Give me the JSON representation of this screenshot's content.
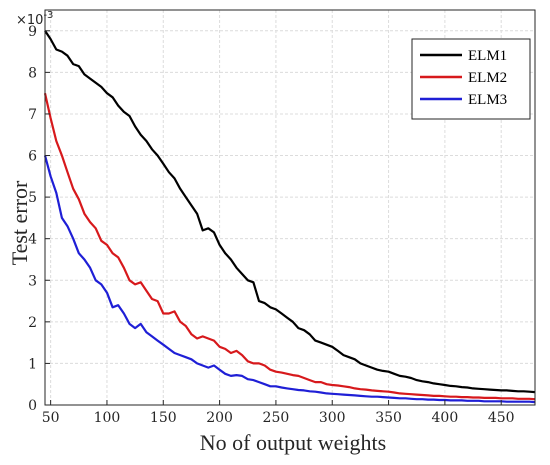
{
  "chart_data": {
    "type": "line",
    "xlabel": "No of output weights",
    "ylabel": "Test error",
    "y_multiplier_label": "×10",
    "y_multiplier_exponent": "-3",
    "xlim": [
      45,
      480
    ],
    "ylim": [
      0,
      9.5
    ],
    "xticks": [
      50,
      100,
      150,
      200,
      250,
      300,
      350,
      400,
      450
    ],
    "yticks": [
      0,
      1,
      2,
      3,
      4,
      5,
      6,
      7,
      8,
      9
    ],
    "grid": true,
    "legend_position": "top-right",
    "series": [
      {
        "name": "ELM1",
        "color": "#000000",
        "x": [
          45,
          50,
          55,
          60,
          65,
          70,
          75,
          80,
          85,
          90,
          95,
          100,
          105,
          110,
          115,
          120,
          125,
          130,
          135,
          140,
          145,
          150,
          155,
          160,
          165,
          170,
          175,
          180,
          185,
          190,
          195,
          200,
          205,
          210,
          215,
          220,
          225,
          230,
          235,
          240,
          245,
          250,
          255,
          260,
          265,
          270,
          275,
          280,
          285,
          290,
          295,
          300,
          305,
          310,
          315,
          320,
          325,
          330,
          335,
          340,
          345,
          350,
          355,
          360,
          365,
          370,
          375,
          380,
          385,
          390,
          395,
          400,
          405,
          410,
          415,
          420,
          425,
          430,
          435,
          440,
          445,
          450,
          455,
          460,
          465,
          470,
          475,
          480
        ],
        "values": [
          9.0,
          8.8,
          8.55,
          8.5,
          8.4,
          8.2,
          8.15,
          7.95,
          7.85,
          7.75,
          7.65,
          7.5,
          7.4,
          7.2,
          7.05,
          6.95,
          6.7,
          6.5,
          6.35,
          6.15,
          6.0,
          5.8,
          5.6,
          5.45,
          5.2,
          5.0,
          4.8,
          4.6,
          4.2,
          4.25,
          4.15,
          3.85,
          3.65,
          3.5,
          3.3,
          3.15,
          3.0,
          2.95,
          2.5,
          2.45,
          2.35,
          2.3,
          2.2,
          2.1,
          2.0,
          1.85,
          1.8,
          1.7,
          1.55,
          1.5,
          1.45,
          1.4,
          1.3,
          1.2,
          1.15,
          1.1,
          1.0,
          0.95,
          0.9,
          0.85,
          0.82,
          0.8,
          0.75,
          0.7,
          0.68,
          0.65,
          0.6,
          0.57,
          0.55,
          0.52,
          0.5,
          0.48,
          0.46,
          0.45,
          0.43,
          0.42,
          0.4,
          0.39,
          0.38,
          0.37,
          0.36,
          0.35,
          0.35,
          0.34,
          0.33,
          0.33,
          0.32,
          0.31
        ]
      },
      {
        "name": "ELM2",
        "color": "#d7191c",
        "x": [
          45,
          50,
          55,
          60,
          65,
          70,
          75,
          80,
          85,
          90,
          95,
          100,
          105,
          110,
          115,
          120,
          125,
          130,
          135,
          140,
          145,
          150,
          155,
          160,
          165,
          170,
          175,
          180,
          185,
          190,
          195,
          200,
          205,
          210,
          215,
          220,
          225,
          230,
          235,
          240,
          245,
          250,
          255,
          260,
          265,
          270,
          275,
          280,
          285,
          290,
          295,
          300,
          305,
          310,
          315,
          320,
          325,
          330,
          335,
          340,
          345,
          350,
          355,
          360,
          365,
          370,
          375,
          380,
          385,
          390,
          395,
          400,
          405,
          410,
          415,
          420,
          425,
          430,
          435,
          440,
          445,
          450,
          455,
          460,
          465,
          470,
          475,
          480
        ],
        "values": [
          7.5,
          6.9,
          6.35,
          6.0,
          5.6,
          5.2,
          4.95,
          4.6,
          4.4,
          4.25,
          3.95,
          3.85,
          3.65,
          3.55,
          3.3,
          3.0,
          2.9,
          2.95,
          2.75,
          2.55,
          2.5,
          2.2,
          2.2,
          2.25,
          2.0,
          1.9,
          1.7,
          1.6,
          1.65,
          1.6,
          1.55,
          1.4,
          1.35,
          1.25,
          1.3,
          1.2,
          1.05,
          1.0,
          1.0,
          0.95,
          0.85,
          0.8,
          0.78,
          0.75,
          0.72,
          0.7,
          0.65,
          0.6,
          0.55,
          0.55,
          0.5,
          0.48,
          0.47,
          0.45,
          0.43,
          0.4,
          0.38,
          0.37,
          0.35,
          0.34,
          0.33,
          0.32,
          0.3,
          0.28,
          0.27,
          0.26,
          0.25,
          0.24,
          0.23,
          0.22,
          0.22,
          0.21,
          0.2,
          0.2,
          0.19,
          0.19,
          0.18,
          0.18,
          0.17,
          0.17,
          0.17,
          0.16,
          0.16,
          0.16,
          0.15,
          0.15,
          0.15,
          0.14
        ]
      },
      {
        "name": "ELM3",
        "color": "#1f1fd6",
        "x": [
          45,
          50,
          55,
          60,
          65,
          70,
          75,
          80,
          85,
          90,
          95,
          100,
          105,
          110,
          115,
          120,
          125,
          130,
          135,
          140,
          145,
          150,
          155,
          160,
          165,
          170,
          175,
          180,
          185,
          190,
          195,
          200,
          205,
          210,
          215,
          220,
          225,
          230,
          235,
          240,
          245,
          250,
          255,
          260,
          265,
          270,
          275,
          280,
          285,
          290,
          295,
          300,
          305,
          310,
          315,
          320,
          325,
          330,
          335,
          340,
          345,
          350,
          355,
          360,
          365,
          370,
          375,
          380,
          385,
          390,
          395,
          400,
          405,
          410,
          415,
          420,
          425,
          430,
          435,
          440,
          445,
          450,
          455,
          460,
          465,
          470,
          475,
          480
        ],
        "values": [
          6.0,
          5.5,
          5.1,
          4.5,
          4.3,
          4.0,
          3.65,
          3.5,
          3.3,
          3.0,
          2.9,
          2.7,
          2.35,
          2.4,
          2.2,
          1.95,
          1.85,
          1.95,
          1.75,
          1.65,
          1.55,
          1.45,
          1.35,
          1.25,
          1.2,
          1.15,
          1.1,
          1.0,
          0.95,
          0.9,
          0.95,
          0.85,
          0.75,
          0.7,
          0.72,
          0.7,
          0.62,
          0.6,
          0.55,
          0.5,
          0.45,
          0.45,
          0.42,
          0.4,
          0.38,
          0.36,
          0.35,
          0.33,
          0.32,
          0.3,
          0.28,
          0.27,
          0.26,
          0.25,
          0.24,
          0.23,
          0.22,
          0.21,
          0.2,
          0.2,
          0.19,
          0.18,
          0.17,
          0.16,
          0.16,
          0.15,
          0.14,
          0.14,
          0.13,
          0.13,
          0.12,
          0.12,
          0.11,
          0.11,
          0.11,
          0.1,
          0.1,
          0.1,
          0.09,
          0.09,
          0.09,
          0.09,
          0.08,
          0.08,
          0.08,
          0.08,
          0.08,
          0.07
        ]
      }
    ]
  }
}
